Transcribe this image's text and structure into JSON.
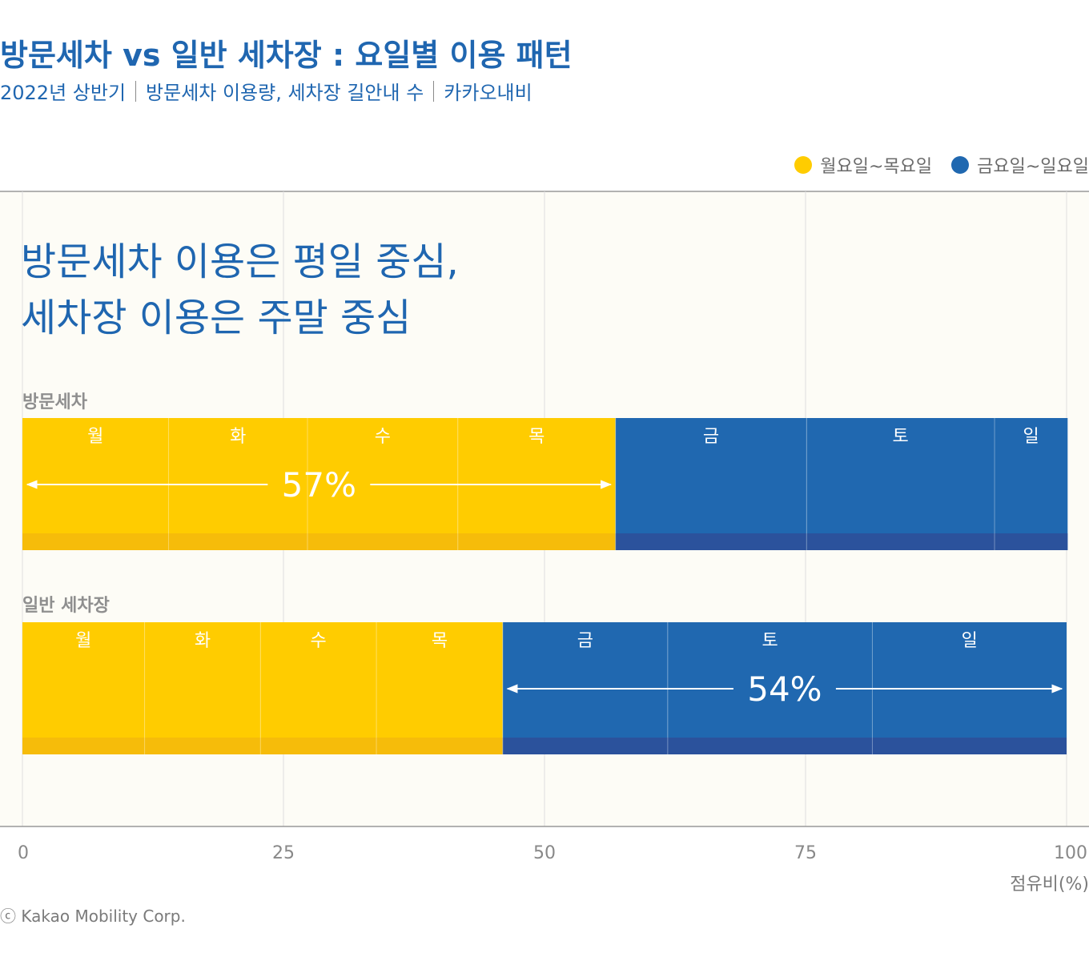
{
  "header": {
    "title": "방문세차 vs 일반 세차장 : 요일별 이용 패턴",
    "subtitle": [
      "2022년 상반기",
      "방문세차 이용량, 세차장 길안내 수",
      "카카오내비"
    ]
  },
  "headline": [
    "방문세차 이용은 평일 중심,",
    "세차장 이용은 주말 중심"
  ],
  "footer": "ⓒ Kakao Mobility Corp.",
  "colors": {
    "weekday": "#ffcc00",
    "weekday_dark": "#f6bc0a",
    "weekend": "#2068b0",
    "weekend_dark": "#2b529c"
  },
  "chart_data": {
    "type": "bar",
    "orientation": "horizontal",
    "stacked": true,
    "xlabel": "점유비(%)",
    "xlim": [
      0,
      100
    ],
    "xticks": [
      "0",
      "25",
      "50",
      "75",
      "100"
    ],
    "legend": [
      {
        "label": "월요일~목요일",
        "color": "#ffcc00"
      },
      {
        "label": "금요일~일요일",
        "color": "#2068b0"
      }
    ],
    "rows": [
      {
        "label": "방문세차",
        "days": [
          "월",
          "화",
          "수",
          "목",
          "금",
          "토",
          "일"
        ],
        "values": [
          14.0,
          13.3,
          14.4,
          15.1,
          18.3,
          18.0,
          7.0
        ],
        "annotation": "57%",
        "annotation_group": "weekday"
      },
      {
        "label": "일반 세차장",
        "days": [
          "월",
          "화",
          "수",
          "목",
          "금",
          "토",
          "일"
        ],
        "values": [
          11.7,
          11.1,
          11.1,
          12.1,
          15.8,
          19.6,
          18.6
        ],
        "annotation": "54%",
        "annotation_group": "weekend"
      }
    ]
  }
}
